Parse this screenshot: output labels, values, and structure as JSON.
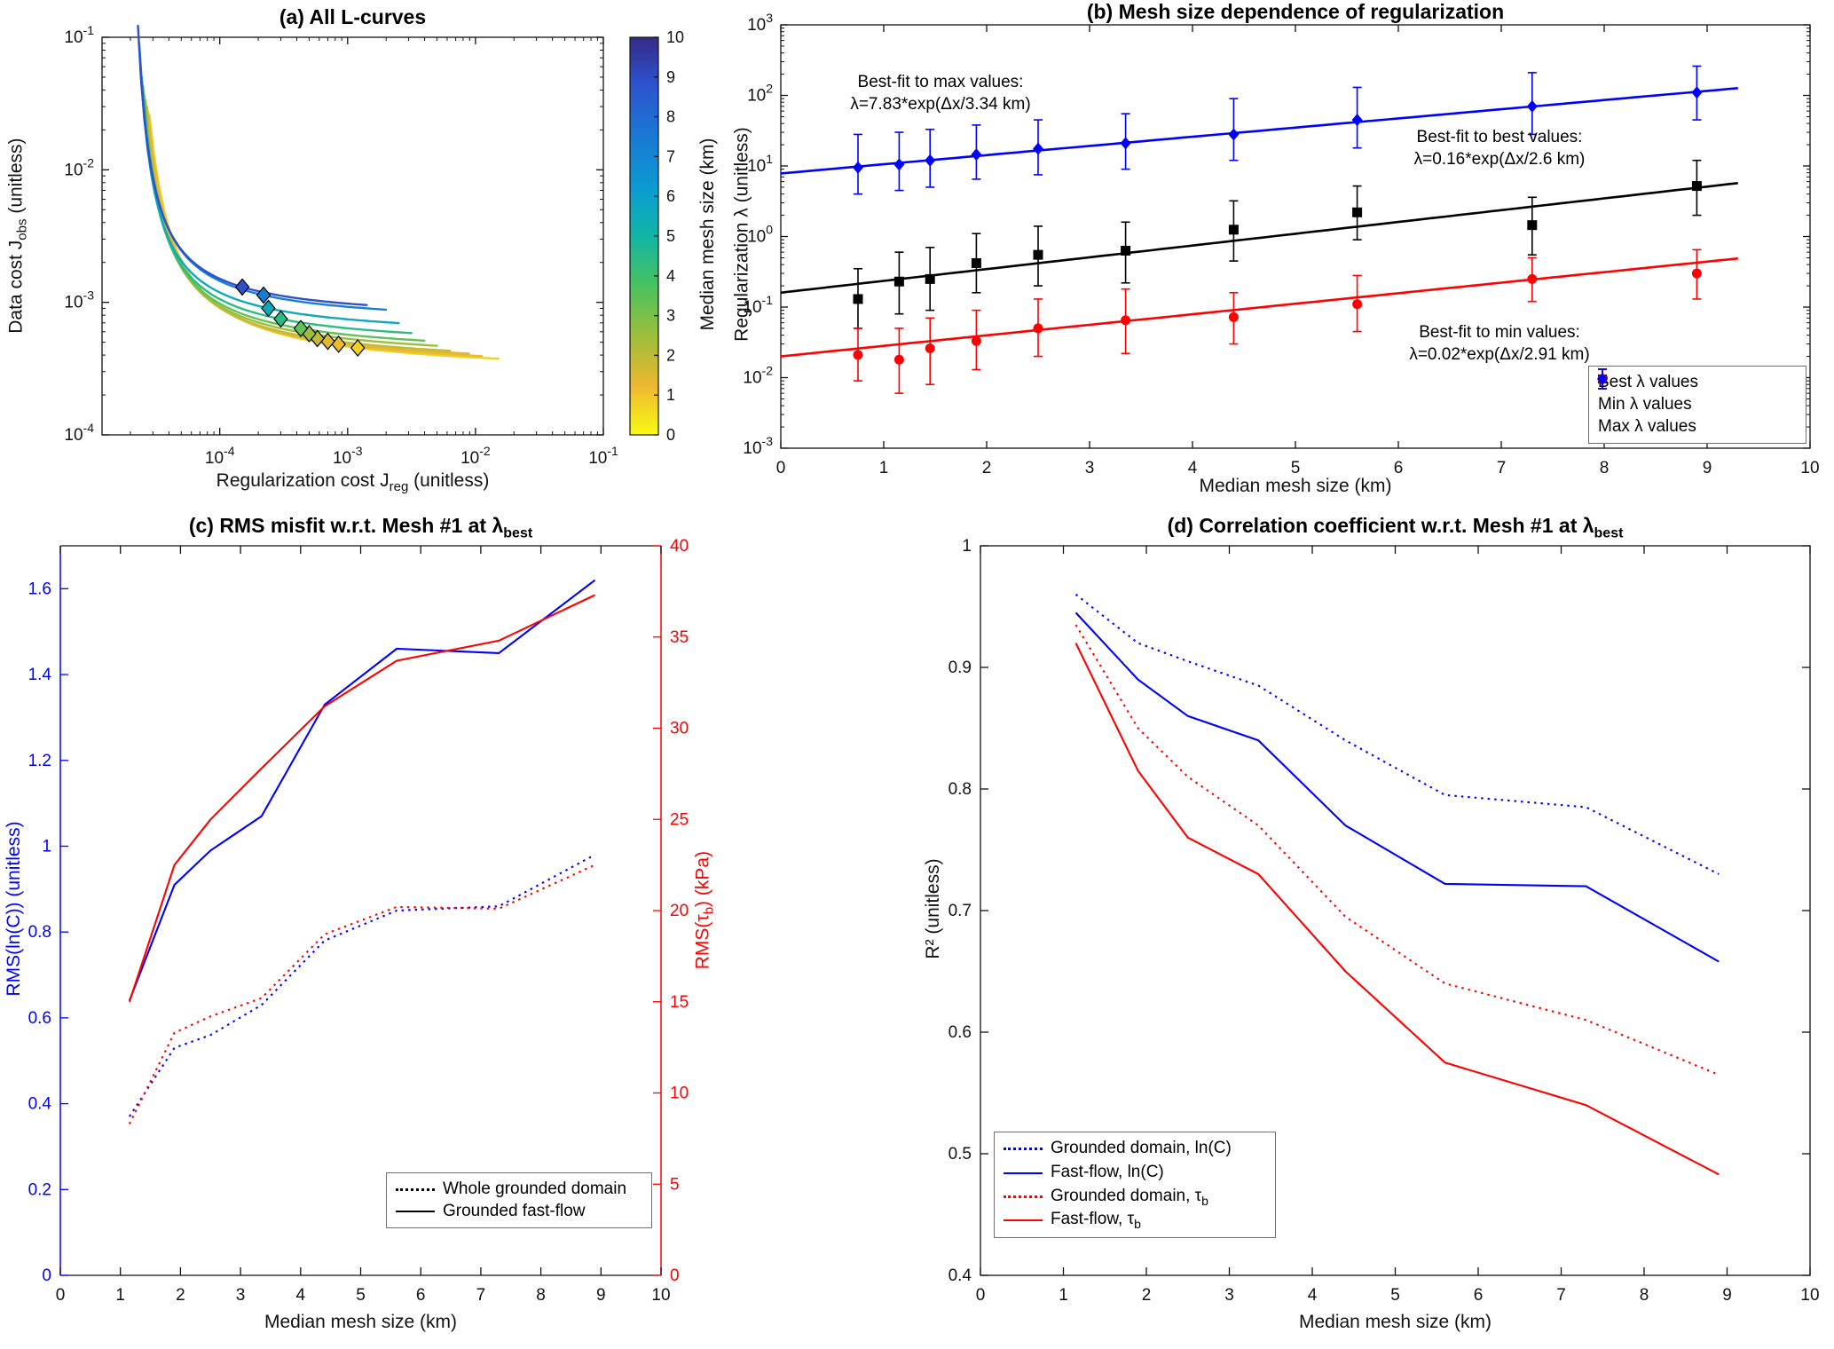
{
  "figure": {
    "background": "#ffffff"
  },
  "chart_data": [
    {
      "id": "a",
      "type": "line",
      "title": {
        "pre": "(a) All L-curves",
        "sub": ""
      },
      "xlabel": {
        "pre": "Regularization cost J",
        "sub": "reg",
        "post": " (unitless)"
      },
      "ylabel": {
        "pre": "Data cost J",
        "sub": "obs",
        "post": " (unitless)"
      },
      "xscale": "log",
      "yscale": "log",
      "xlim": [
        1.2e-05,
        0.1
      ],
      "ylim": [
        0.0001,
        0.1
      ],
      "xticks": [
        0.0001,
        0.001,
        0.01,
        0.1
      ],
      "yticks": [
        0.0001,
        0.001,
        0.01,
        0.1
      ],
      "colorbar": {
        "label": "Median mesh size (km)",
        "min": 0,
        "max": 10,
        "ticks": [
          0,
          1,
          2,
          3,
          4,
          5,
          6,
          7,
          8,
          9,
          10
        ]
      },
      "colormap_stops": [
        [
          0,
          "#352a87"
        ],
        [
          0.12,
          "#2d53cf"
        ],
        [
          0.25,
          "#1a79d4"
        ],
        [
          0.38,
          "#0c9bd3"
        ],
        [
          0.5,
          "#12b5a5"
        ],
        [
          0.62,
          "#45c261"
        ],
        [
          0.75,
          "#9cbe3a"
        ],
        [
          0.88,
          "#eeb830"
        ],
        [
          1,
          "#f9fb13"
        ]
      ],
      "lcurves": [
        {
          "mesh": 0.75,
          "uL": -4.75,
          "vB": -3.56,
          "k": 0.395,
          "u0": -4.55,
          "u1": -1.82,
          "marker_x": 0.0012
        },
        {
          "mesh": 1.15,
          "uL": -4.75,
          "vB": -3.54,
          "k": 0.376,
          "u0": -4.56,
          "u1": -1.95,
          "marker_x": 0.00085
        },
        {
          "mesh": 1.45,
          "uL": -4.75,
          "vB": -3.52,
          "k": 0.36,
          "u0": -4.57,
          "u1": -2.05,
          "marker_x": 0.0007
        },
        {
          "mesh": 1.9,
          "uL": -4.75,
          "vB": -3.5,
          "k": 0.344,
          "u0": -4.58,
          "u1": -2.2,
          "marker_x": 0.00058
        },
        {
          "mesh": 2.5,
          "uL": -4.75,
          "vB": -3.46,
          "k": 0.324,
          "u0": -4.59,
          "u1": -2.3,
          "marker_x": 0.0005
        },
        {
          "mesh": 3.35,
          "uL": -4.75,
          "vB": -3.42,
          "k": 0.308,
          "u0": -4.6,
          "u1": -2.4,
          "marker_x": 0.00043
        },
        {
          "mesh": 4.4,
          "uL": -4.75,
          "vB": -3.36,
          "k": 0.288,
          "u0": -4.61,
          "u1": -2.5,
          "marker_x": 0.0003
        },
        {
          "mesh": 5.6,
          "uL": -4.75,
          "vB": -3.28,
          "k": 0.266,
          "u0": -4.62,
          "u1": -2.6,
          "marker_x": 0.00024
        },
        {
          "mesh": 7.3,
          "uL": -4.75,
          "vB": -3.18,
          "k": 0.256,
          "u0": -4.63,
          "u1": -2.7,
          "marker_x": 0.00022
        },
        {
          "mesh": 8.9,
          "uL": -4.75,
          "vB": -3.15,
          "k": 0.246,
          "u0": -4.64,
          "u1": -2.85,
          "marker_x": 0.00015
        }
      ]
    },
    {
      "id": "b",
      "type": "scatter",
      "title": {
        "pre": "(b) Mesh size dependence of regularization",
        "sub": ""
      },
      "xlabel": {
        "pre": "Median mesh size (km)",
        "sub": "",
        "post": ""
      },
      "ylabel": {
        "pre": "Regularization λ (unitless)",
        "sub": "",
        "post": ""
      },
      "xscale": "linear",
      "yscale": "log",
      "xlim": [
        0,
        10
      ],
      "ylim": [
        0.001,
        1000.0
      ],
      "xticks": [
        0,
        1,
        2,
        3,
        4,
        5,
        6,
        7,
        8,
        9,
        10
      ],
      "yticks": [
        0.001,
        0.01,
        0.1,
        1,
        10,
        100,
        1000
      ],
      "x": [
        0.75,
        1.15,
        1.45,
        1.9,
        2.5,
        3.35,
        4.4,
        5.6,
        7.3,
        8.9
      ],
      "series": [
        {
          "key": "best",
          "name": "Best λ values",
          "marker": "square",
          "color": "#000000",
          "values": [
            0.13,
            0.23,
            0.25,
            0.42,
            0.55,
            0.63,
            1.25,
            2.2,
            1.45,
            5.2
          ],
          "err_lo": [
            0.05,
            0.08,
            0.09,
            0.16,
            0.2,
            0.22,
            0.45,
            0.9,
            0.55,
            2.0
          ],
          "err_hi": [
            0.35,
            0.6,
            0.7,
            1.1,
            1.4,
            1.6,
            3.2,
            5.2,
            3.6,
            12
          ],
          "fit": {
            "a": 0.16,
            "tau": 2.6
          }
        },
        {
          "key": "min",
          "name": "Min λ values",
          "marker": "circle",
          "color": "#ff0000",
          "values": [
            0.021,
            0.018,
            0.026,
            0.033,
            0.05,
            0.065,
            0.072,
            0.11,
            0.25,
            0.3
          ],
          "err_lo": [
            0.009,
            0.006,
            0.008,
            0.013,
            0.02,
            0.022,
            0.03,
            0.045,
            0.12,
            0.13
          ],
          "err_hi": [
            0.05,
            0.05,
            0.07,
            0.09,
            0.13,
            0.18,
            0.16,
            0.28,
            0.5,
            0.65
          ],
          "fit": {
            "a": 0.02,
            "tau": 2.91
          }
        },
        {
          "key": "max",
          "name": "Max λ values",
          "marker": "diamond",
          "color": "#0000ff",
          "values": [
            9.5,
            10.5,
            12,
            14.5,
            17.5,
            21,
            28,
            45,
            70,
            110
          ],
          "err_lo": [
            4,
            4.5,
            5,
            6.5,
            7.5,
            9,
            12,
            18,
            28,
            45
          ],
          "err_hi": [
            28,
            30,
            33,
            38,
            45,
            55,
            90,
            130,
            210,
            260
          ],
          "fit": {
            "a": 7.83,
            "tau": 3.34
          }
        }
      ],
      "annotations": [
        {
          "line1": "Best-fit to max values:",
          "line2": "λ=7.83*exp(Δx/3.34 km)"
        },
        {
          "line1": "Best-fit to best values:",
          "line2": "λ=0.16*exp(Δx/2.6 km)"
        },
        {
          "line1": "Best-fit to min values:",
          "line2": "λ=0.02*exp(Δx/2.91 km)"
        }
      ]
    },
    {
      "id": "c",
      "type": "line",
      "title": {
        "pre": "(c) RMS misfit w.r.t. Mesh #1 at λ",
        "sub": "best"
      },
      "xlabel": {
        "pre": "Median mesh size (km)",
        "sub": "",
        "post": ""
      },
      "ylabel_left": {
        "pre": "RMS(ln(C)) (unitless)",
        "sub": "",
        "post": ""
      },
      "ylabel_right": {
        "pre": "RMS(τ",
        "sub": "b",
        "post": ") (kPa)"
      },
      "xlim": [
        0,
        10
      ],
      "ylim_left": [
        0,
        1.7
      ],
      "ylim_right": [
        0,
        40
      ],
      "xticks": [
        0,
        1,
        2,
        3,
        4,
        5,
        6,
        7,
        8,
        9,
        10
      ],
      "yticks_left": [
        0,
        0.2,
        0.4,
        0.6,
        0.8,
        1,
        1.2,
        1.4,
        1.6
      ],
      "yticks_right": [
        0,
        5,
        10,
        15,
        20,
        25,
        30,
        35,
        40
      ],
      "x": [
        1.15,
        1.9,
        2.5,
        3.35,
        4.4,
        5.6,
        7.3,
        8.9
      ],
      "series": [
        {
          "key": "grounded-lnC",
          "name": "Whole grounded domain, ln(C)",
          "axis": "left",
          "style": "dotted",
          "color": "#0000ff",
          "values": [
            0.37,
            0.53,
            0.56,
            0.63,
            0.78,
            0.85,
            0.86,
            0.98
          ]
        },
        {
          "key": "fastflow-lnC",
          "name": "Grounded fast-flow, ln(C)",
          "axis": "left",
          "style": "solid",
          "color": "#0000ff",
          "values": [
            0.64,
            0.91,
            0.99,
            1.07,
            1.33,
            1.46,
            1.45,
            1.62
          ]
        },
        {
          "key": "grounded-taub",
          "name": "Whole grounded domain, τb",
          "axis": "right",
          "style": "dotted",
          "color": "#ff0000",
          "values": [
            8.3,
            13.3,
            14.2,
            15.2,
            18.7,
            20.2,
            20.1,
            22.5
          ]
        },
        {
          "key": "fastflow-taub",
          "name": "Grounded fast-flow, τb",
          "axis": "right",
          "style": "solid",
          "color": "#ff0000",
          "values": [
            15,
            22.5,
            25,
            27.8,
            31.2,
            33.7,
            34.8,
            37.3
          ]
        }
      ],
      "legend": [
        {
          "label": "Whole grounded domain",
          "style": "dotted"
        },
        {
          "label": "Grounded fast-flow",
          "style": "solid"
        }
      ]
    },
    {
      "id": "d",
      "type": "line",
      "title": {
        "pre": "(d) Correlation coefficient w.r.t. Mesh #1 at λ",
        "sub": "best"
      },
      "xlabel": {
        "pre": "Median mesh size (km)",
        "sub": "",
        "post": ""
      },
      "ylabel": {
        "pre": "R² (unitless)",
        "sub": "",
        "post": ""
      },
      "xlim": [
        0,
        10
      ],
      "ylim": [
        0.4,
        1
      ],
      "xticks": [
        0,
        1,
        2,
        3,
        4,
        5,
        6,
        7,
        8,
        9,
        10
      ],
      "yticks": [
        0.4,
        0.5,
        0.6,
        0.7,
        0.8,
        0.9,
        1
      ],
      "x": [
        1.15,
        1.9,
        2.5,
        3.35,
        4.4,
        5.6,
        7.3,
        8.9
      ],
      "series": [
        {
          "key": "grounded-lnC",
          "name_pre": "Grounded domain, ln(C)",
          "name_sub": "",
          "style": "dotted",
          "color": "#0000ff",
          "values": [
            0.96,
            0.92,
            0.905,
            0.885,
            0.84,
            0.795,
            0.785,
            0.73
          ]
        },
        {
          "key": "fastflow-lnC",
          "name_pre": "Fast-flow, ln(C)",
          "name_sub": "",
          "style": "solid",
          "color": "#0000ff",
          "values": [
            0.945,
            0.89,
            0.86,
            0.84,
            0.77,
            0.722,
            0.72,
            0.658
          ]
        },
        {
          "key": "grounded-taub",
          "name_pre": "Grounded domain, τ",
          "name_sub": "b",
          "style": "dotted",
          "color": "#ff0000",
          "values": [
            0.935,
            0.85,
            0.81,
            0.77,
            0.695,
            0.64,
            0.61,
            0.565
          ]
        },
        {
          "key": "fastflow-taub",
          "name_pre": "Fast-flow, τ",
          "name_sub": "b",
          "style": "solid",
          "color": "#ff0000",
          "values": [
            0.92,
            0.815,
            0.76,
            0.73,
            0.65,
            0.575,
            0.54,
            0.483
          ]
        }
      ]
    }
  ]
}
